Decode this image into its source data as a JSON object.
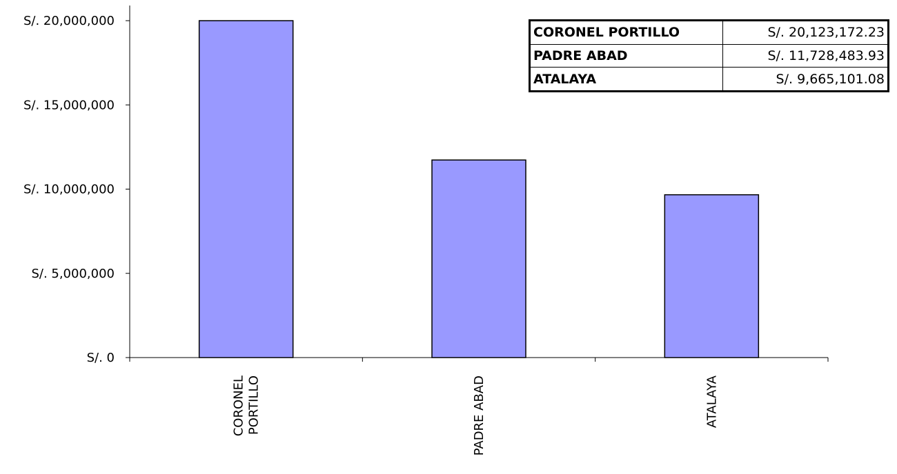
{
  "chart_data": {
    "type": "bar",
    "categories": [
      "CORONEL PORTILLO",
      "PADRE ABAD",
      "ATALAYA"
    ],
    "category_labels": [
      [
        "CORONEL",
        "PORTILLO"
      ],
      [
        "PADRE ABAD"
      ],
      [
        "ATALAYA"
      ]
    ],
    "values": [
      20123172.23,
      11728483.93,
      9665101.08
    ],
    "ylim": [
      0,
      20000000
    ],
    "yticks": [
      0,
      5000000,
      10000000,
      15000000,
      20000000
    ],
    "ytick_labels": [
      "S/. 0",
      "S/. 5,000,000",
      "S/. 10,000,000",
      "S/. 15,000,000",
      "S/. 20,000,000"
    ],
    "title": "",
    "xlabel": "",
    "ylabel": "",
    "bar_color": "#9999ff",
    "bar_edge_color": "#000000",
    "grid": false,
    "legend_placement": "top-right",
    "data_table": [
      {
        "name": "CORONEL PORTILLO",
        "value_text": "S/. 20,123,172.23"
      },
      {
        "name": "PADRE ABAD",
        "value_text": "S/. 11,728,483.93"
      },
      {
        "name": "ATALAYA",
        "value_text": "S/. 9,665,101.08"
      }
    ]
  }
}
